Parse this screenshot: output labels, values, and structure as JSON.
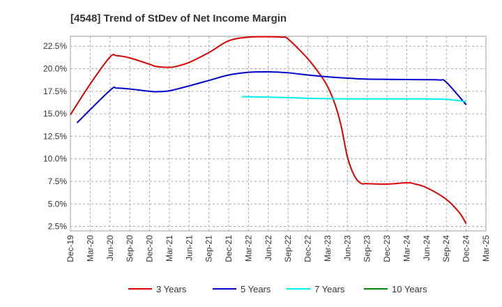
{
  "chart_data": {
    "type": "line",
    "title": "[4548]  Trend of StDev of Net Income Margin",
    "xlabel": "",
    "ylabel": "",
    "x_tick_labels": [
      "Dec-19",
      "Mar-20",
      "Jun-20",
      "Sep-20",
      "Dec-20",
      "Mar-21",
      "Jun-21",
      "Sep-21",
      "Dec-21",
      "Mar-22",
      "Jun-22",
      "Sep-22",
      "Dec-22",
      "Mar-23",
      "Jun-23",
      "Sep-23",
      "Dec-23",
      "Mar-24",
      "Jun-24",
      "Sep-24",
      "Dec-24",
      "Mar-25"
    ],
    "y_tick_labels": [
      "2.5%",
      "5.0%",
      "7.5%",
      "10.0%",
      "12.5%",
      "15.0%",
      "17.5%",
      "20.0%",
      "22.5%"
    ],
    "y_ticks": [
      2.5,
      5.0,
      7.5,
      10.0,
      12.5,
      15.0,
      17.5,
      20.0,
      22.5
    ],
    "ylim": [
      2.0,
      23.6
    ],
    "grid": true,
    "legend_position": "bottom",
    "series": [
      {
        "name": "3 Years",
        "color": "#dd0000",
        "points": [
          [
            "Dec-19",
            14.9
          ],
          [
            "Mar-20",
            18.3
          ],
          [
            "Jun-20",
            21.3
          ],
          [
            "Jul-20",
            21.45
          ],
          [
            "Sep-20",
            21.2
          ],
          [
            "Dec-20",
            20.5
          ],
          [
            "Jan-21",
            20.25
          ],
          [
            "Mar-21",
            20.15
          ],
          [
            "Apr-21",
            20.25
          ],
          [
            "Jun-21",
            20.7
          ],
          [
            "Sep-21",
            21.8
          ],
          [
            "Dec-21",
            23.1
          ],
          [
            "Mar-22",
            23.5
          ],
          [
            "Jun-22",
            23.55
          ],
          [
            "Aug-22",
            23.5
          ],
          [
            "Sep-22",
            23.3
          ],
          [
            "Dec-22",
            21.1
          ],
          [
            "Feb-23",
            19.2
          ],
          [
            "Mar-23",
            18.0
          ],
          [
            "Apr-23",
            16.3
          ],
          [
            "May-23",
            13.8
          ],
          [
            "Jun-23",
            10.2
          ],
          [
            "Jul-23",
            8.2
          ],
          [
            "Aug-23",
            7.3
          ],
          [
            "Sep-23",
            7.25
          ],
          [
            "Dec-23",
            7.2
          ],
          [
            "Mar-24",
            7.35
          ],
          [
            "Apr-24",
            7.25
          ],
          [
            "Jun-24",
            6.8
          ],
          [
            "Sep-24",
            5.5
          ],
          [
            "Nov-24",
            4.0
          ],
          [
            "Dec-24",
            2.8
          ]
        ]
      },
      {
        "name": "5 Years",
        "color": "#0000cc",
        "points": [
          [
            "Jan-20",
            14.0
          ],
          [
            "Jun-20",
            17.6
          ],
          [
            "Jul-20",
            17.85
          ],
          [
            "Sep-20",
            17.75
          ],
          [
            "Dec-20",
            17.5
          ],
          [
            "Jan-21",
            17.45
          ],
          [
            "Mar-21",
            17.55
          ],
          [
            "Jun-21",
            18.1
          ],
          [
            "Sep-21",
            18.7
          ],
          [
            "Dec-21",
            19.3
          ],
          [
            "Mar-22",
            19.6
          ],
          [
            "Jun-22",
            19.65
          ],
          [
            "Sep-22",
            19.55
          ],
          [
            "Dec-22",
            19.3
          ],
          [
            "Mar-23",
            19.1
          ],
          [
            "Jun-23",
            18.95
          ],
          [
            "Sep-23",
            18.85
          ],
          [
            "Dec-23",
            18.82
          ],
          [
            "Mar-24",
            18.8
          ],
          [
            "Jun-24",
            18.78
          ],
          [
            "Aug-24",
            18.75
          ],
          [
            "Sep-24",
            18.5
          ],
          [
            "Dec-24",
            16.0
          ]
        ]
      },
      {
        "name": "7 Years",
        "color": "#00eeee",
        "points": [
          [
            "Feb-22",
            16.9
          ],
          [
            "Jun-22",
            16.85
          ],
          [
            "Sep-22",
            16.8
          ],
          [
            "Dec-22",
            16.72
          ],
          [
            "Mar-23",
            16.68
          ],
          [
            "Jun-23",
            16.65
          ],
          [
            "Sep-23",
            16.65
          ],
          [
            "Dec-23",
            16.65
          ],
          [
            "Mar-24",
            16.65
          ],
          [
            "Jun-24",
            16.65
          ],
          [
            "Sep-24",
            16.6
          ],
          [
            "Dec-24",
            16.35
          ]
        ]
      },
      {
        "name": "10 Years",
        "color": "#008800",
        "points": []
      }
    ]
  }
}
